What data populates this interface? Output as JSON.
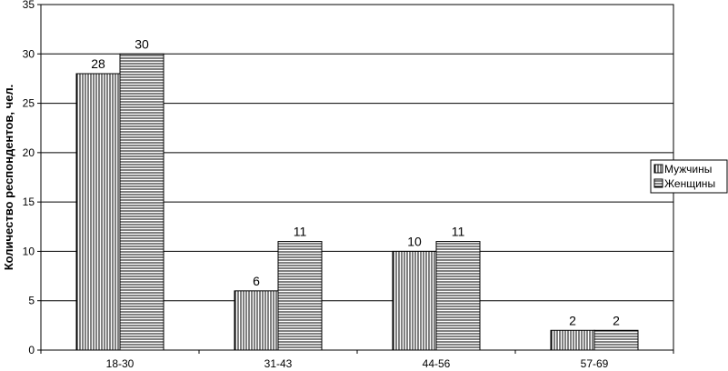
{
  "chart_data": {
    "type": "bar",
    "title": "",
    "xlabel": "",
    "ylabel": "Количество респондентов, чел.",
    "categories": [
      "18-30",
      "31-43",
      "44-56",
      "57-69"
    ],
    "series": [
      {
        "name": "Мужчины",
        "values": [
          28,
          6,
          10,
          2
        ],
        "pattern": "vertical-lines"
      },
      {
        "name": "Женщины",
        "values": [
          30,
          11,
          11,
          2
        ],
        "pattern": "horizontal-lines"
      }
    ],
    "ylim": [
      0,
      35
    ],
    "yticks": [
      0,
      5,
      10,
      15,
      20,
      25,
      30,
      35
    ],
    "grid": true,
    "legend": "right",
    "colors": {
      "bar_stroke": "#000000",
      "bar_fill": "#ffffff",
      "grid": "#000000"
    }
  }
}
